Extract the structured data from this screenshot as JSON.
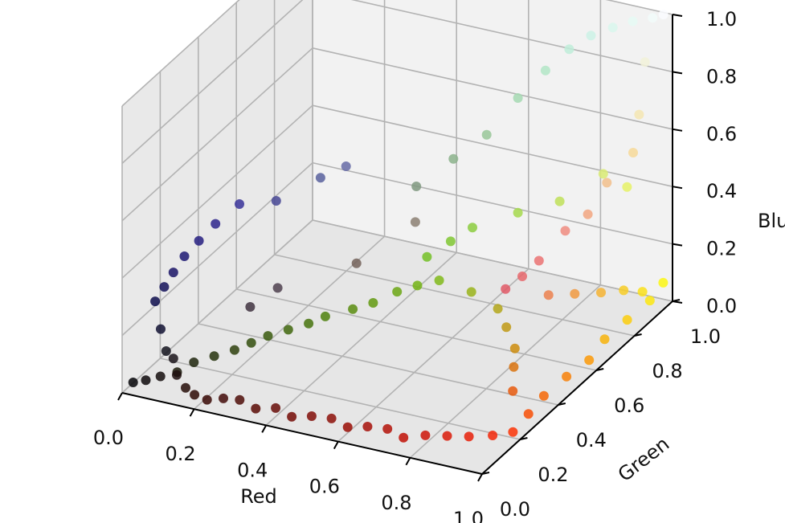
{
  "chart_data": {
    "type": "scatter",
    "title": "",
    "xlabel": "Red",
    "ylabel": "Green",
    "zlabel": "Blu",
    "xlim": [
      0.0,
      1.0
    ],
    "ylim": [
      0.0,
      1.0
    ],
    "zlim": [
      0.0,
      1.0
    ],
    "grid": true,
    "x_ticks": [
      "0.0",
      "0.2",
      "0.4",
      "0.6",
      "0.8",
      "1.0"
    ],
    "y_ticks": [
      "0.0",
      "0.2",
      "0.4",
      "0.6",
      "0.8",
      "1.0"
    ],
    "z_ticks": [
      "0.0",
      "0.2",
      "0.4",
      "0.6",
      "0.8",
      "1.0"
    ],
    "color_encoding": "each point colored by its own RGB value",
    "points": [
      [
        0.02,
        0.02,
        0.03
      ],
      [
        0.05,
        0.03,
        0.04
      ],
      [
        0.08,
        0.05,
        0.05
      ],
      [
        0.1,
        0.08,
        0.1
      ],
      [
        0.12,
        0.06,
        0.06
      ],
      [
        0.15,
        0.05,
        0.03
      ],
      [
        0.18,
        0.04,
        0.02
      ],
      [
        0.22,
        0.03,
        0.02
      ],
      [
        0.26,
        0.04,
        0.03
      ],
      [
        0.3,
        0.05,
        0.03
      ],
      [
        0.35,
        0.04,
        0.02
      ],
      [
        0.4,
        0.05,
        0.03
      ],
      [
        0.45,
        0.04,
        0.02
      ],
      [
        0.5,
        0.05,
        0.03
      ],
      [
        0.55,
        0.06,
        0.03
      ],
      [
        0.6,
        0.05,
        0.02
      ],
      [
        0.65,
        0.06,
        0.03
      ],
      [
        0.7,
        0.07,
        0.03
      ],
      [
        0.75,
        0.06,
        0.02
      ],
      [
        0.8,
        0.08,
        0.03
      ],
      [
        0.85,
        0.1,
        0.03
      ],
      [
        0.9,
        0.12,
        0.03
      ],
      [
        0.95,
        0.15,
        0.03
      ],
      [
        0.98,
        0.2,
        0.02
      ],
      [
        0.97,
        0.3,
        0.02
      ],
      [
        0.96,
        0.4,
        0.02
      ],
      [
        0.97,
        0.5,
        0.03
      ],
      [
        0.98,
        0.6,
        0.03
      ],
      [
        0.97,
        0.7,
        0.04
      ],
      [
        0.98,
        0.8,
        0.05
      ],
      [
        0.99,
        0.9,
        0.06
      ],
      [
        0.99,
        0.97,
        0.08
      ],
      [
        0.9,
        0.35,
        0.05
      ],
      [
        0.85,
        0.45,
        0.06
      ],
      [
        0.8,
        0.55,
        0.05
      ],
      [
        0.75,
        0.6,
        0.08
      ],
      [
        0.7,
        0.65,
        0.1
      ],
      [
        0.6,
        0.7,
        0.1
      ],
      [
        0.5,
        0.72,
        0.1
      ],
      [
        0.45,
        0.7,
        0.08
      ],
      [
        0.42,
        0.65,
        0.08
      ],
      [
        0.38,
        0.6,
        0.06
      ],
      [
        0.35,
        0.55,
        0.06
      ],
      [
        0.3,
        0.5,
        0.05
      ],
      [
        0.28,
        0.45,
        0.05
      ],
      [
        0.25,
        0.4,
        0.05
      ],
      [
        0.22,
        0.35,
        0.05
      ],
      [
        0.2,
        0.3,
        0.05
      ],
      [
        0.18,
        0.25,
        0.05
      ],
      [
        0.15,
        0.2,
        0.05
      ],
      [
        0.12,
        0.15,
        0.05
      ],
      [
        0.1,
        0.1,
        0.04
      ],
      [
        0.08,
        0.08,
        0.12
      ],
      [
        0.07,
        0.07,
        0.2
      ],
      [
        0.06,
        0.06,
        0.3
      ],
      [
        0.08,
        0.07,
        0.35
      ],
      [
        0.1,
        0.08,
        0.4
      ],
      [
        0.12,
        0.1,
        0.45
      ],
      [
        0.15,
        0.12,
        0.5
      ],
      [
        0.18,
        0.15,
        0.55
      ],
      [
        0.22,
        0.2,
        0.6
      ],
      [
        0.28,
        0.28,
        0.58
      ],
      [
        0.35,
        0.38,
        0.62
      ],
      [
        0.4,
        0.42,
        0.65
      ],
      [
        0.3,
        0.25,
        0.3
      ],
      [
        0.25,
        0.2,
        0.25
      ],
      [
        0.45,
        0.38,
        0.35
      ],
      [
        0.55,
        0.5,
        0.45
      ],
      [
        0.5,
        0.6,
        0.5
      ],
      [
        0.55,
        0.7,
        0.55
      ],
      [
        0.6,
        0.78,
        0.6
      ],
      [
        0.65,
        0.85,
        0.7
      ],
      [
        0.7,
        0.9,
        0.78
      ],
      [
        0.75,
        0.93,
        0.85
      ],
      [
        0.8,
        0.95,
        0.9
      ],
      [
        0.85,
        0.97,
        0.93
      ],
      [
        0.9,
        0.98,
        0.96
      ],
      [
        0.95,
        0.99,
        0.98
      ],
      [
        0.98,
        0.99,
        1.0
      ],
      [
        0.95,
        0.95,
        0.85
      ],
      [
        0.96,
        0.9,
        0.7
      ],
      [
        0.97,
        0.85,
        0.6
      ],
      [
        0.95,
        0.75,
        0.55
      ],
      [
        0.95,
        0.65,
        0.5
      ],
      [
        0.94,
        0.55,
        0.5
      ],
      [
        0.92,
        0.45,
        0.45
      ],
      [
        0.9,
        0.4,
        0.42
      ],
      [
        0.88,
        0.35,
        0.4
      ],
      [
        0.92,
        0.5,
        0.3
      ],
      [
        0.94,
        0.6,
        0.25
      ],
      [
        0.96,
        0.7,
        0.2
      ],
      [
        0.97,
        0.8,
        0.15
      ],
      [
        0.98,
        0.88,
        0.1
      ],
      [
        0.9,
        0.95,
        0.4
      ],
      [
        0.85,
        0.92,
        0.45
      ],
      [
        0.75,
        0.88,
        0.35
      ],
      [
        0.65,
        0.85,
        0.3
      ],
      [
        0.55,
        0.8,
        0.25
      ],
      [
        0.5,
        0.78,
        0.2
      ],
      [
        0.45,
        0.75,
        0.15
      ]
    ]
  }
}
